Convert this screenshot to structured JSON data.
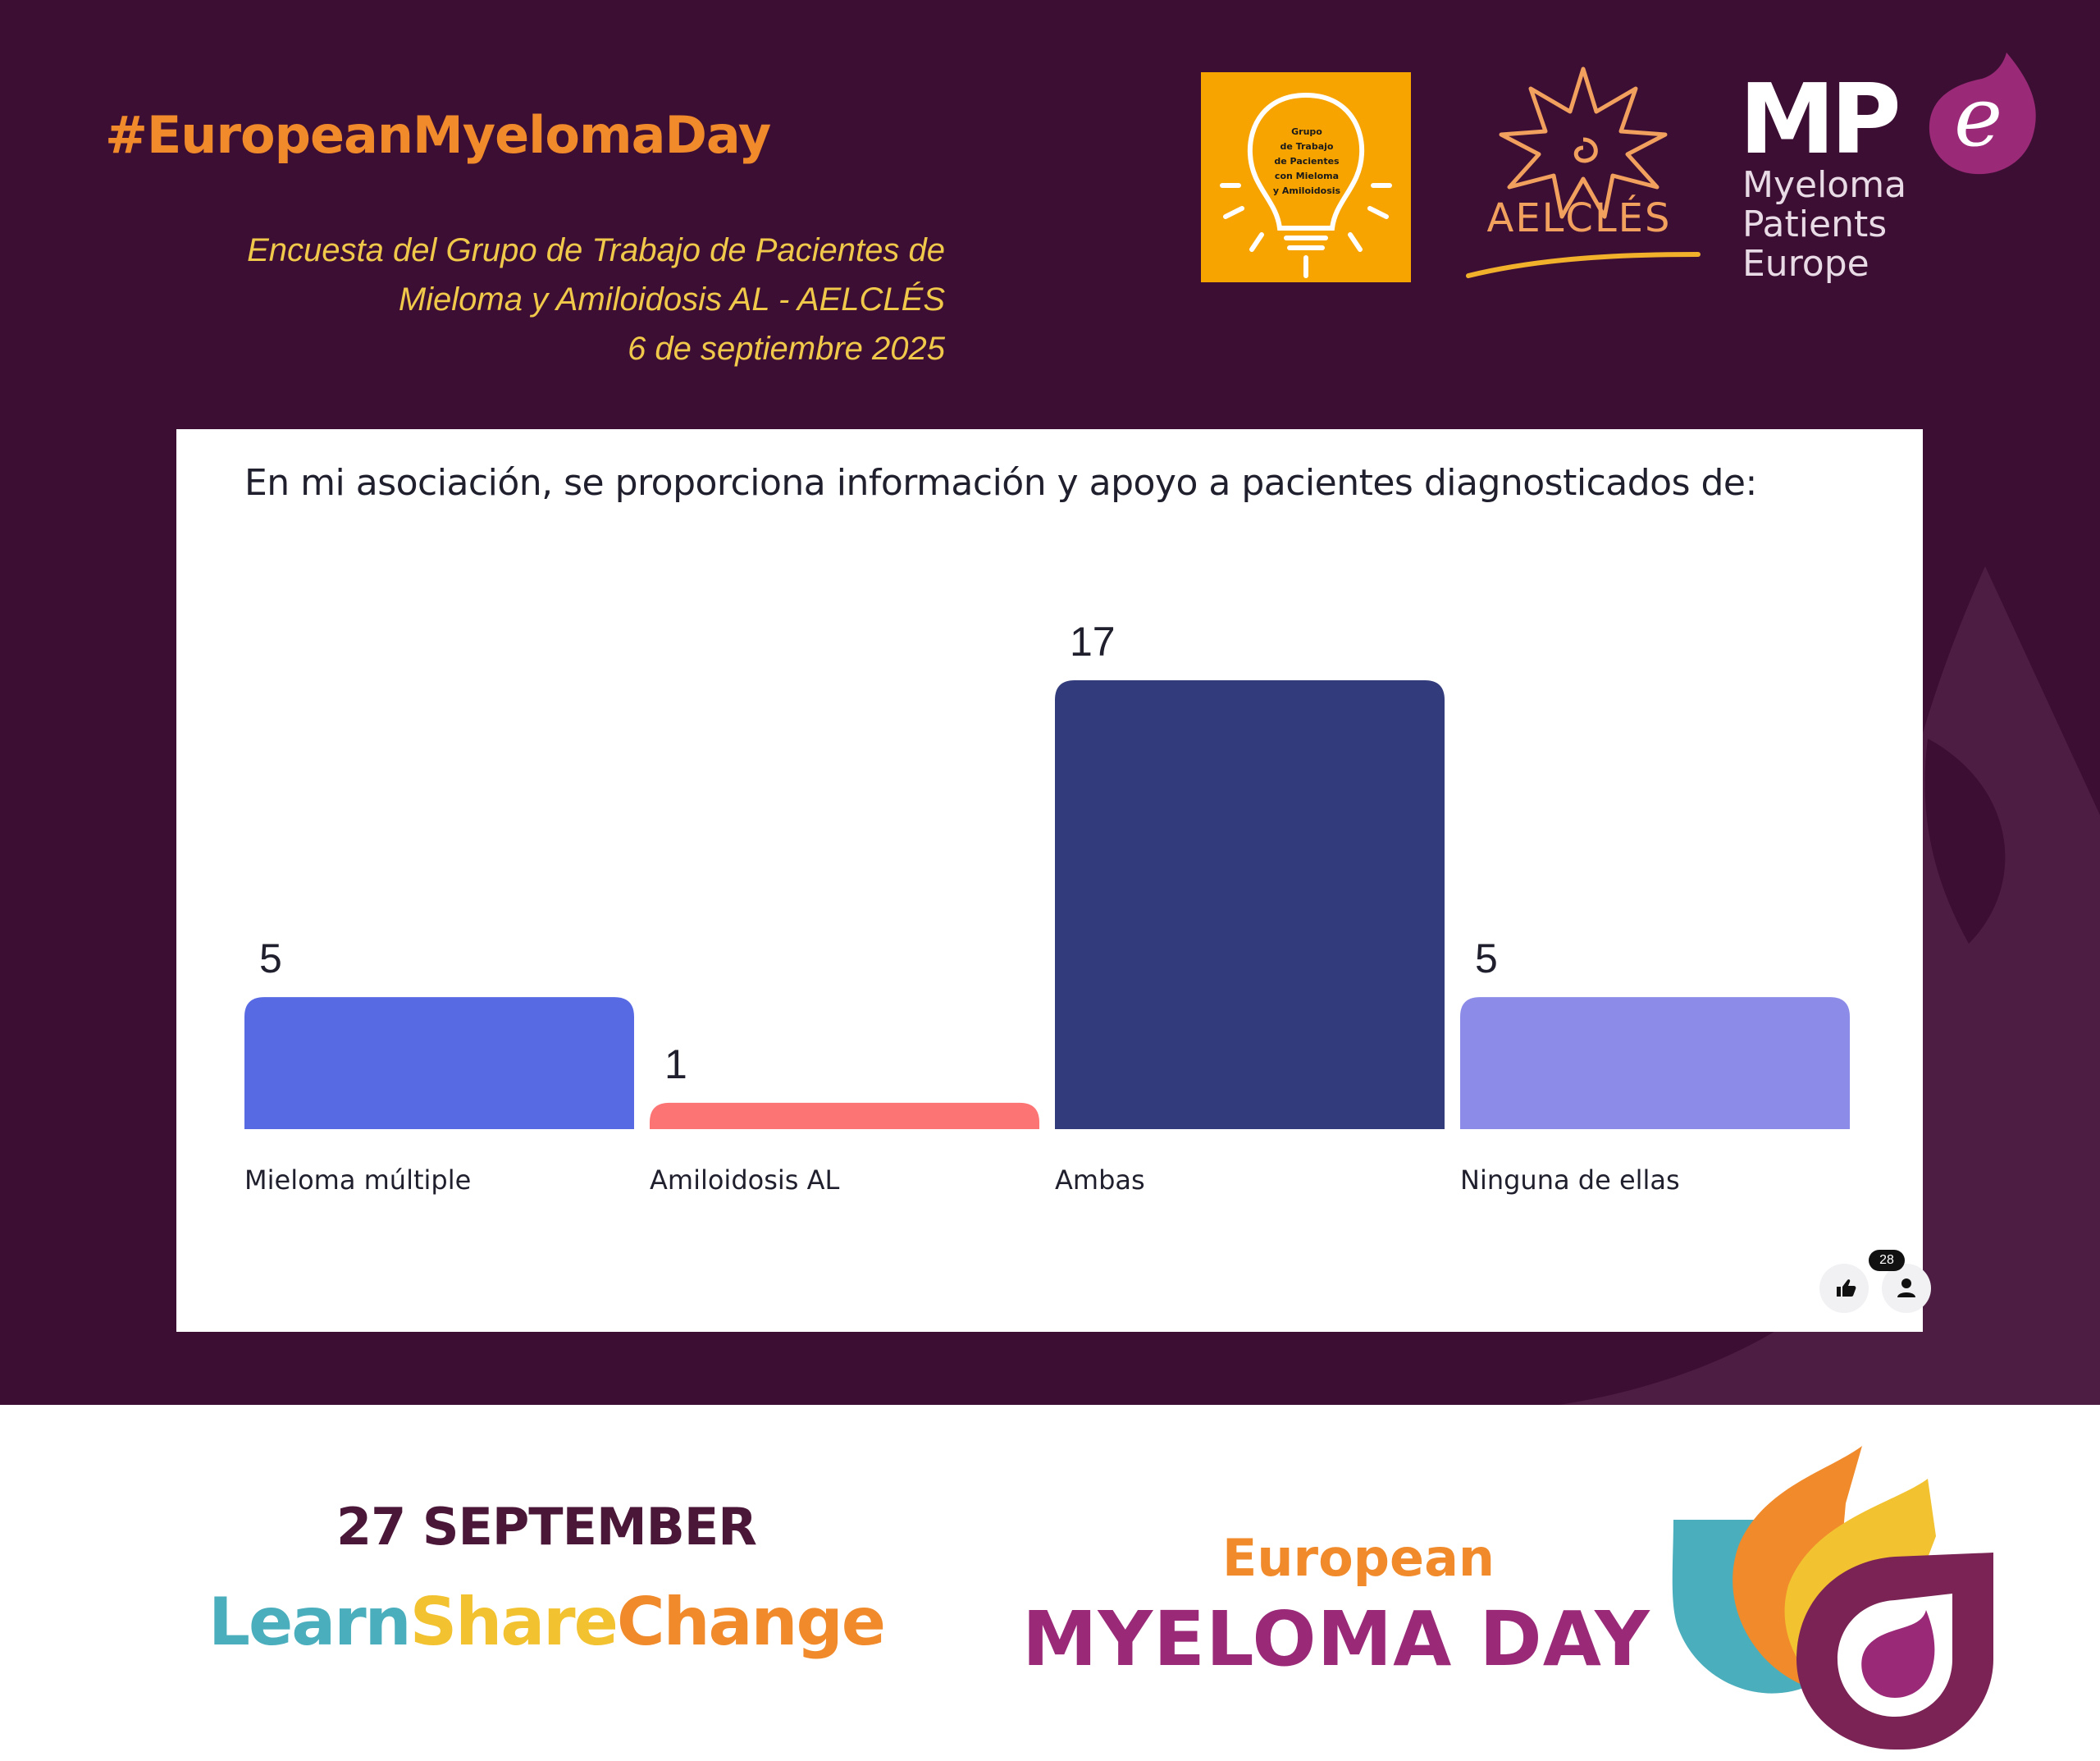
{
  "header": {
    "hashtag": "#EuropeanMyelomaDay",
    "subtitle_lines": [
      "Encuesta del Grupo de Trabajo de Pacientes de",
      "Mieloma y Amiloidosis AL - AELCLÉS",
      "6 de septiembre 2025"
    ]
  },
  "logos": {
    "grupo": {
      "text": "Grupo\nde Trabajo\nde Pacientes\ncon Mieloma\ny Amiloidosis",
      "icon": "lightbulb-icon",
      "color": "#f7a300"
    },
    "aelcles": {
      "name": "AELCLÉS",
      "icon": "star-flower-icon",
      "color": "#f2a05e"
    },
    "mpe": {
      "mark": "MP",
      "letter": "e",
      "text": "Myeloma\nPatients\nEurope",
      "color": "#9a2a78"
    }
  },
  "chart_data": {
    "type": "bar",
    "title": "En mi asociación, se proporciona información y apoyo a pacientes diagnosticados de:",
    "categories": [
      "Mieloma múltiple",
      "Amiloidosis AL",
      "Ambas",
      "Ninguna de ellas"
    ],
    "values": [
      5,
      1,
      17,
      5
    ],
    "colors": [
      "#5869e4",
      "#fd7474",
      "#323b7b",
      "#8c8ce8"
    ],
    "ylim": [
      0,
      17
    ],
    "grid": false,
    "legend": "none"
  },
  "footer": {
    "like_icon": "thumbs-up-icon",
    "participants_icon": "person-icon",
    "participants": "28"
  },
  "bottom": {
    "date": "27 SEPTEMBER",
    "learn": "Learn",
    "share": "Share",
    "change": "Change",
    "european": "European",
    "myeloma_day": "MYELOMA DAY",
    "logo_icon": "droplet-petals-icon"
  }
}
